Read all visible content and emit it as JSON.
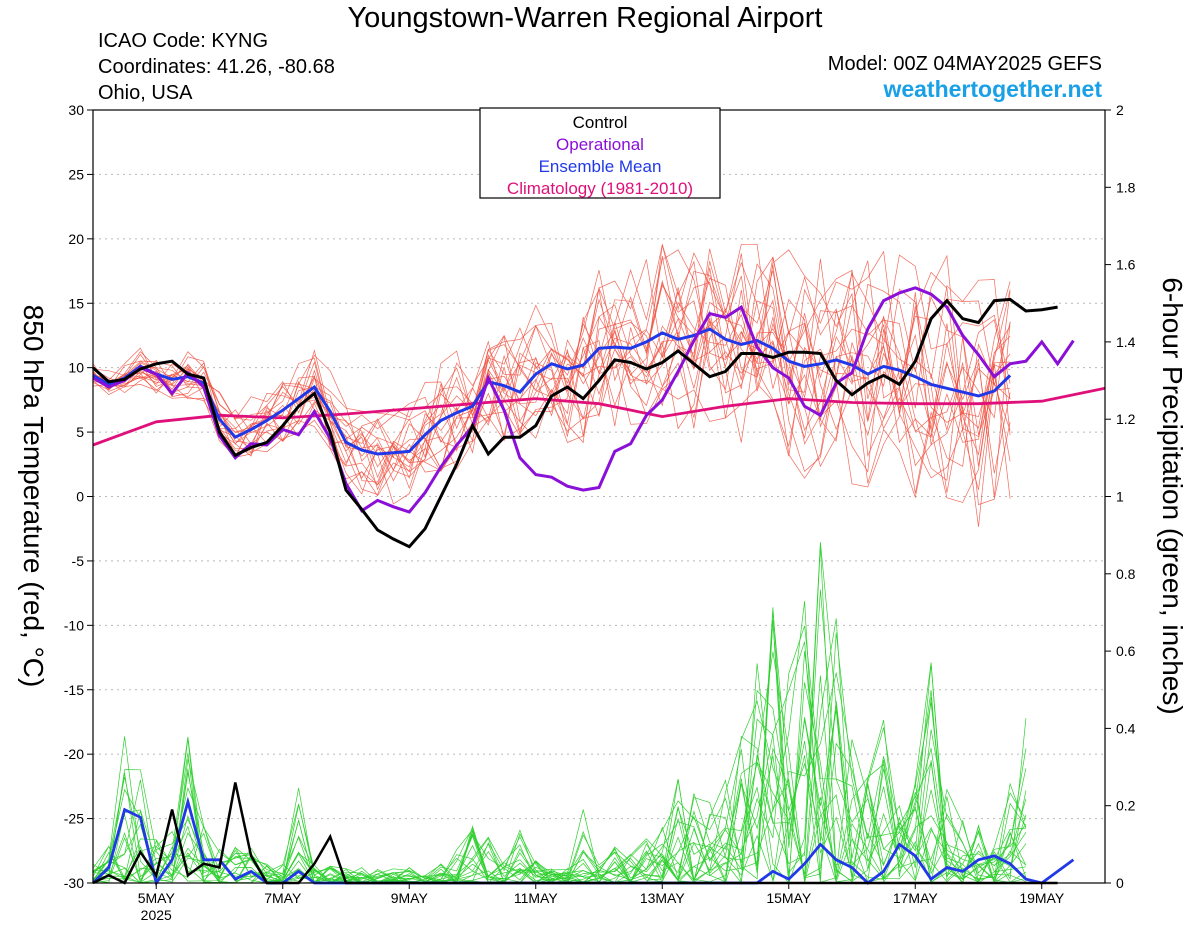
{
  "header": {
    "title": "Youngstown-Warren Regional Airport",
    "icao": "ICAO Code: KYNG",
    "coords": "Coordinates: 41.26, -80.68",
    "location": "Ohio, USA",
    "model": "Model: 00Z 04MAY2025 GEFS",
    "site": "weathertogether.net"
  },
  "chart_data": {
    "type": "line",
    "title": "Youngstown-Warren Regional Airport",
    "ylabel": "850 hPa Temperature (red, °C)",
    "y2label": "6-hour Precipitation (green, inches)",
    "ylim": [
      -30,
      30
    ],
    "y2lim": [
      0,
      2
    ],
    "xlim": [
      0,
      64
    ],
    "xticks": [
      {
        "x": 4,
        "label": "5MAY",
        "sub": "2025"
      },
      {
        "x": 12,
        "label": "7MAY"
      },
      {
        "x": 20,
        "label": "9MAY"
      },
      {
        "x": 28,
        "label": "11MAY"
      },
      {
        "x": 36,
        "label": "13MAY"
      },
      {
        "x": 44,
        "label": "15MAY"
      },
      {
        "x": 52,
        "label": "17MAY"
      },
      {
        "x": 60,
        "label": "19MAY"
      }
    ],
    "yticks": [
      -30,
      -25,
      -20,
      -15,
      -10,
      -5,
      0,
      5,
      10,
      15,
      20,
      25,
      30
    ],
    "y2ticks": [
      "0",
      "0.2",
      "0.4",
      "0.6",
      "0.8",
      "1",
      "1.2",
      "1.4",
      "1.6",
      "1.8",
      "2"
    ],
    "legend": {
      "position": "top-center",
      "entries": [
        {
          "label": "Control",
          "color": "#000000"
        },
        {
          "label": "Operational",
          "color": "#8a10d8"
        },
        {
          "label": "Ensemble Mean",
          "color": "#2038e8"
        },
        {
          "label": "Climatology (1981-2010)",
          "color": "#e0107a"
        }
      ]
    },
    "x_step": "6 hours",
    "temperature": {
      "control": [
        10,
        8.9,
        9.1,
        9.9,
        10.3,
        10.5,
        9.5,
        9.2,
        5,
        3.2,
        3.8,
        4.2,
        5.5,
        7,
        8,
        5,
        0.5,
        -1,
        -2.6,
        -3.3,
        -3.9,
        -2.5,
        0,
        2.5,
        5.5,
        3.3,
        4.6,
        4.6,
        5.5,
        7.8,
        8.5,
        7.6,
        9,
        10.6,
        10.4,
        9.9,
        10.4,
        11.3,
        10.3,
        9.3,
        9.7,
        11.1,
        11.1,
        10.8,
        11.2,
        11.2,
        11.1,
        9,
        7.9,
        8.8,
        9.4,
        8.7,
        10.5,
        13.8,
        15.2,
        13.8,
        13.5,
        15.2,
        15.3,
        14.4,
        14.5,
        14.7
      ],
      "operational": [
        9.2,
        8.5,
        9,
        10,
        9.5,
        8,
        9.6,
        8.5,
        4.7,
        3,
        4.1,
        4,
        5.2,
        4.8,
        6.6,
        4.5,
        1,
        -1.1,
        -0.3,
        -0.8,
        -1.2,
        0.3,
        2.3,
        4,
        5.4,
        9.2,
        6.7,
        3,
        1.7,
        1.5,
        0.8,
        0.5,
        0.7,
        3.5,
        4.1,
        6.3,
        7.5,
        9.7,
        12.1,
        14.2,
        13.9,
        14.7,
        11.6,
        10,
        9.2,
        7,
        6.3,
        8.8,
        9.6,
        13,
        15.2,
        15.8,
        16.2,
        15.7,
        14.7,
        12.5,
        11,
        9.3,
        10.3,
        10.5,
        12,
        10.3,
        12.1
      ],
      "mean": [
        9.4,
        8.7,
        9.2,
        10.1,
        9.5,
        9.1,
        9.3,
        8.8,
        6,
        4.6,
        5.2,
        5.9,
        6.7,
        7.6,
        8.5,
        6.6,
        4.2,
        3.6,
        3.3,
        3.4,
        3.5,
        4.8,
        5.9,
        6.5,
        7,
        8.9,
        8.6,
        8.1,
        9.5,
        10.3,
        9.9,
        10.2,
        11.5,
        11.6,
        11.5,
        12,
        12.7,
        12.2,
        12.5,
        13,
        12.2,
        11.8,
        12.1,
        11.5,
        10.5,
        10.1,
        10.3,
        10.6,
        10.2,
        9.5,
        10.1,
        9.8,
        9.3,
        8.7,
        8.4,
        8.1,
        7.8,
        8.2,
        9.4
      ],
      "climatology": [
        4,
        5.8,
        6.3,
        6.1,
        6.4,
        6.8,
        7.2,
        7.6,
        7.2,
        6.2,
        7,
        7.6,
        7.3,
        7.2,
        7.2,
        7.4,
        8.4
      ]
    },
    "precipitation": {
      "control": [
        0,
        0.02,
        0.0,
        0.08,
        0.02,
        0.19,
        0.02,
        0.05,
        0.04,
        0.26,
        0.07,
        0.0,
        0.0,
        0.0,
        0.05,
        0.12,
        0.0,
        0.0,
        0.0,
        0.0,
        0.0,
        0.0,
        0.0,
        0.0,
        0.0,
        0.0,
        0.0,
        0.0,
        0.0,
        0.0,
        0.0,
        0.0,
        0.0,
        0.0,
        0.0,
        0.0,
        0.0,
        0.0,
        0.0,
        0.0,
        0.0,
        0.0,
        0.0,
        0.0,
        0.0,
        0.0,
        0.0,
        0.0,
        0.0,
        0.0,
        0.0,
        0.0,
        0.0,
        0.0,
        0.0,
        0.0,
        0.0,
        0.0,
        0.0,
        0.0,
        0.0,
        0.0
      ],
      "mean": [
        0,
        0.04,
        0.19,
        0.17,
        0.0,
        0.06,
        0.21,
        0.06,
        0.06,
        0.01,
        0.03,
        0.0,
        0.0,
        0.03,
        0.0,
        0.0,
        0.0,
        0.0,
        0.0,
        0.0,
        0.0,
        0.0,
        0.0,
        0.0,
        0.0,
        0.0,
        0.0,
        0.0,
        0.0,
        0.0,
        0.0,
        0.0,
        0.0,
        0.0,
        0.0,
        0.0,
        0.0,
        0.0,
        0.0,
        0.0,
        0.0,
        0.0,
        0.0,
        0.03,
        0.01,
        0.05,
        0.1,
        0.06,
        0.04,
        0.0,
        0.03,
        0.1,
        0.07,
        0.01,
        0.04,
        0.03,
        0.06,
        0.07,
        0.05,
        0.01,
        0.0,
        0.03,
        0.06
      ],
      "spread_max": [
        0.05,
        0.1,
        0.42,
        0.3,
        0.12,
        0.2,
        0.38,
        0.15,
        0.1,
        0.1,
        0.1,
        0.05,
        0.05,
        0.25,
        0.05,
        0.05,
        0.04,
        0.04,
        0.05,
        0.04,
        0.04,
        0.02,
        0.05,
        0.09,
        0.15,
        0.12,
        0.06,
        0.14,
        0.06,
        0.04,
        0.04,
        0.2,
        0.06,
        0.1,
        0.08,
        0.12,
        0.2,
        0.3,
        0.25,
        0.22,
        0.35,
        0.4,
        0.6,
        0.85,
        0.55,
        0.75,
        0.9,
        0.7,
        0.4,
        0.3,
        0.45,
        0.2,
        0.3,
        0.6,
        0.25,
        0.2,
        0.15,
        0.1,
        0.3,
        0.45
      ]
    }
  },
  "colors": {
    "ensemble_temp": "#f05040",
    "ensemble_precip": "#30d030",
    "control": "#000000",
    "operational": "#8a10d8",
    "mean": "#2038e8",
    "climatology": "#e0107a",
    "site": "#1aa0e6"
  }
}
